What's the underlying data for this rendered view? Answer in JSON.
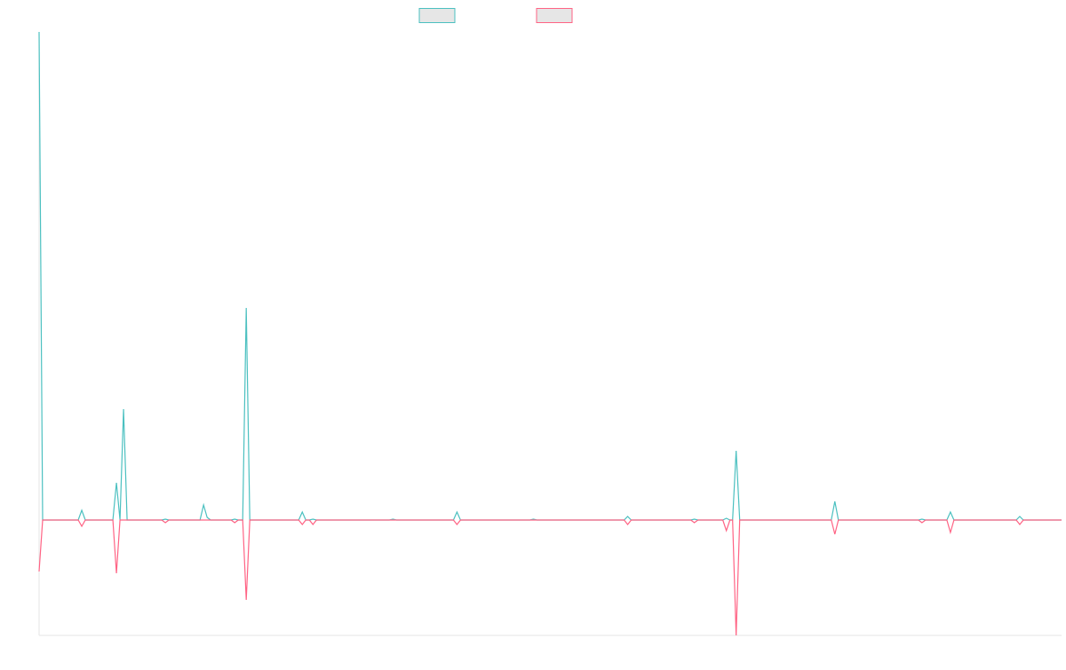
{
  "chart_data": {
    "type": "line",
    "title": "",
    "xlabel": "",
    "ylabel": "",
    "legend_position": "top-center",
    "grid": false,
    "x_range": [
      0,
      1150
    ],
    "ylim": [
      -130,
      550
    ],
    "series": [
      {
        "color": "#4bc0c0",
        "fill": "#e6e6e6",
        "points": [
          [
            0,
            550
          ],
          [
            4,
            0
          ],
          [
            44,
            0
          ],
          [
            48,
            11
          ],
          [
            52,
            0
          ],
          [
            83,
            0
          ],
          [
            87,
            42
          ],
          [
            91,
            0
          ],
          [
            95,
            125
          ],
          [
            99,
            0
          ],
          [
            138,
            0
          ],
          [
            142,
            1
          ],
          [
            146,
            0
          ],
          [
            181,
            0
          ],
          [
            185,
            17
          ],
          [
            189,
            3
          ],
          [
            193,
            0
          ],
          [
            216,
            0
          ],
          [
            220,
            1
          ],
          [
            224,
            0
          ],
          [
            229,
            0
          ],
          [
            233,
            239
          ],
          [
            237,
            0
          ],
          [
            292,
            0
          ],
          [
            296,
            9
          ],
          [
            300,
            0
          ],
          [
            304,
            0
          ],
          [
            308,
            1
          ],
          [
            312,
            0
          ],
          [
            394,
            0
          ],
          [
            398,
            1
          ],
          [
            402,
            0
          ],
          [
            466,
            0
          ],
          [
            470,
            9
          ],
          [
            474,
            0
          ],
          [
            552,
            0
          ],
          [
            556,
            1
          ],
          [
            560,
            0
          ],
          [
            658,
            0
          ],
          [
            662,
            4
          ],
          [
            666,
            0
          ],
          [
            733,
            0
          ],
          [
            737,
            1
          ],
          [
            741,
            0
          ],
          [
            769,
            0
          ],
          [
            773,
            2
          ],
          [
            777,
            0
          ],
          [
            780,
            0
          ],
          [
            784,
            78
          ],
          [
            788,
            0
          ],
          [
            891,
            0
          ],
          [
            895,
            21
          ],
          [
            899,
            0
          ],
          [
            989,
            0
          ],
          [
            993,
            1
          ],
          [
            997,
            0
          ],
          [
            1021,
            0
          ],
          [
            1025,
            9
          ],
          [
            1029,
            0
          ],
          [
            1099,
            0
          ],
          [
            1103,
            4
          ],
          [
            1107,
            0
          ],
          [
            1150,
            0
          ]
        ]
      },
      {
        "color": "#ff6384",
        "fill": "#e6e6e6",
        "points": [
          [
            0,
            -58
          ],
          [
            4,
            0
          ],
          [
            44,
            0
          ],
          [
            48,
            -7
          ],
          [
            52,
            0
          ],
          [
            83,
            0
          ],
          [
            87,
            -60
          ],
          [
            91,
            0
          ],
          [
            95,
            0
          ],
          [
            99,
            0
          ],
          [
            138,
            0
          ],
          [
            142,
            -3
          ],
          [
            146,
            0
          ],
          [
            181,
            0
          ],
          [
            185,
            0
          ],
          [
            189,
            0
          ],
          [
            193,
            0
          ],
          [
            216,
            0
          ],
          [
            220,
            -3
          ],
          [
            224,
            0
          ],
          [
            229,
            0
          ],
          [
            233,
            -90
          ],
          [
            237,
            0
          ],
          [
            292,
            0
          ],
          [
            296,
            -5
          ],
          [
            300,
            0
          ],
          [
            304,
            0
          ],
          [
            308,
            -5
          ],
          [
            312,
            0
          ],
          [
            394,
            0
          ],
          [
            398,
            0
          ],
          [
            402,
            0
          ],
          [
            466,
            0
          ],
          [
            470,
            -5
          ],
          [
            474,
            0
          ],
          [
            552,
            0
          ],
          [
            556,
            0
          ],
          [
            560,
            0
          ],
          [
            658,
            0
          ],
          [
            662,
            -5
          ],
          [
            666,
            0
          ],
          [
            733,
            0
          ],
          [
            737,
            -3
          ],
          [
            741,
            0
          ],
          [
            769,
            0
          ],
          [
            773,
            -12
          ],
          [
            777,
            0
          ],
          [
            780,
            0
          ],
          [
            784,
            -130
          ],
          [
            788,
            0
          ],
          [
            891,
            0
          ],
          [
            895,
            -16
          ],
          [
            899,
            0
          ],
          [
            989,
            0
          ],
          [
            993,
            -3
          ],
          [
            997,
            0
          ],
          [
            1021,
            0
          ],
          [
            1025,
            -14
          ],
          [
            1029,
            0
          ],
          [
            1099,
            0
          ],
          [
            1103,
            -5
          ],
          [
            1107,
            0
          ],
          [
            1150,
            0
          ]
        ]
      }
    ]
  }
}
